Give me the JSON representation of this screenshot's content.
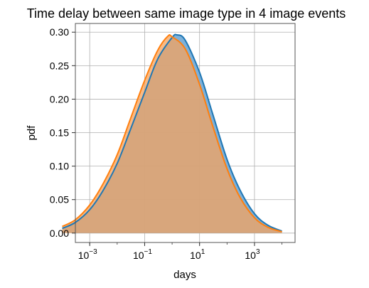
{
  "chart_data": {
    "type": "area",
    "title": "Time delay between same image type in 4 image events",
    "xlabel": "days",
    "ylabel": "pdf",
    "xscale": "log",
    "xlim": [
      0.0003,
      30000
    ],
    "ylim": [
      -0.014,
      0.313
    ],
    "grid": true,
    "x_ticks": [
      {
        "value": 0.001,
        "base": "10",
        "exp": "−3"
      },
      {
        "value": 0.1,
        "base": "10",
        "exp": "−1"
      },
      {
        "value": 10,
        "base": "10",
        "exp": "1"
      },
      {
        "value": 1000,
        "base": "10",
        "exp": "3"
      }
    ],
    "y_ticks": [
      "0.00",
      "0.05",
      "0.10",
      "0.15",
      "0.20",
      "0.25",
      "0.30"
    ],
    "series": [
      {
        "color": "#1f77b4",
        "fill": "#6fa8d6",
        "x": [
          0.0001,
          0.0003,
          0.001,
          0.003,
          0.01,
          0.03,
          0.1,
          0.3,
          1,
          1.5,
          3,
          10,
          30,
          100,
          300,
          1000,
          3000,
          10000
        ],
        "y": [
          0.007,
          0.016,
          0.035,
          0.063,
          0.104,
          0.154,
          0.21,
          0.26,
          0.292,
          0.296,
          0.288,
          0.24,
          0.178,
          0.11,
          0.064,
          0.029,
          0.012,
          0.003
        ]
      },
      {
        "color": "#ff7f0e",
        "fill": "#f7a35c",
        "x": [
          0.0001,
          0.0003,
          0.001,
          0.003,
          0.01,
          0.03,
          0.1,
          0.3,
          0.7,
          1,
          3,
          10,
          30,
          100,
          300,
          1000,
          3000,
          10000
        ],
        "y": [
          0.01,
          0.02,
          0.042,
          0.073,
          0.117,
          0.17,
          0.228,
          0.273,
          0.294,
          0.293,
          0.275,
          0.222,
          0.16,
          0.096,
          0.053,
          0.023,
          0.009,
          0.002
        ]
      }
    ]
  }
}
